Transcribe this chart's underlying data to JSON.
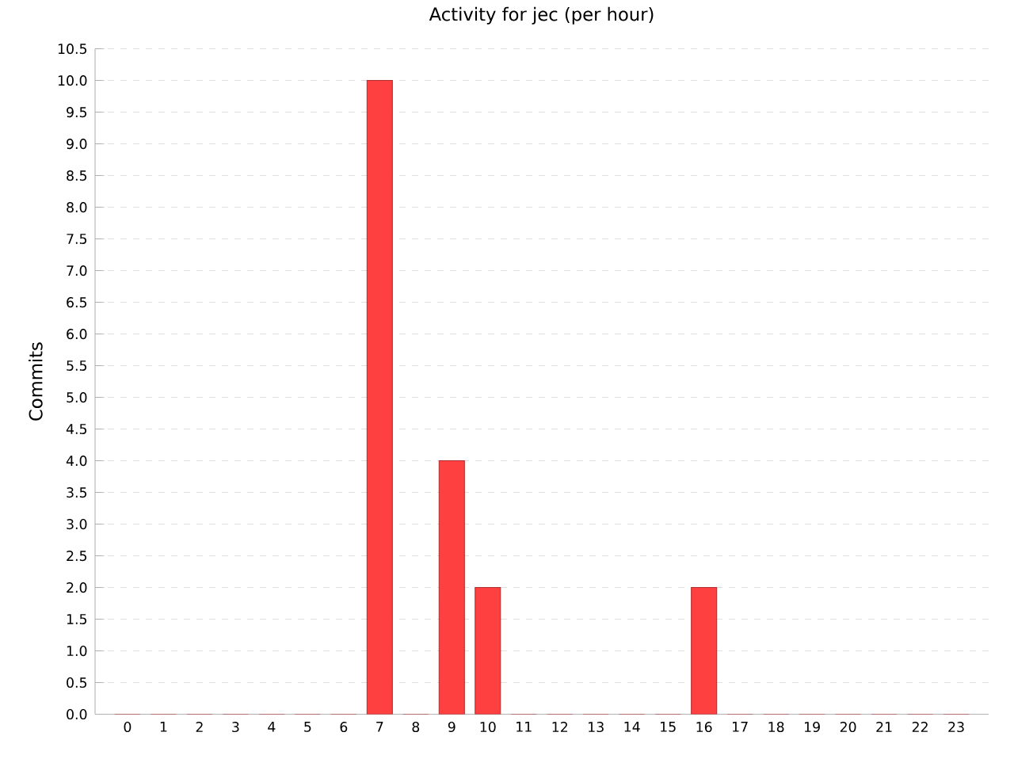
{
  "chart_data": {
    "type": "bar",
    "title": "Activity for jec (per hour)",
    "ylabel": "Commits",
    "categories": [
      "0",
      "1",
      "2",
      "3",
      "4",
      "5",
      "6",
      "7",
      "8",
      "9",
      "10",
      "11",
      "12",
      "13",
      "14",
      "15",
      "16",
      "17",
      "18",
      "19",
      "20",
      "21",
      "22",
      "23"
    ],
    "values": [
      0,
      0,
      0,
      0,
      0,
      0,
      0,
      10,
      0,
      4,
      2,
      0,
      0,
      0,
      0,
      0,
      2,
      0,
      0,
      0,
      0,
      0,
      0,
      0
    ],
    "color": "#ff4040",
    "ylim": [
      0,
      10.5
    ],
    "yticks": [
      {
        "value": 0,
        "label": "0.0"
      },
      {
        "value": 0.5,
        "label": "0.5"
      },
      {
        "value": 1,
        "label": "1.0"
      },
      {
        "value": 1.5,
        "label": "1.5"
      },
      {
        "value": 2,
        "label": "2.0"
      },
      {
        "value": 2.5,
        "label": "2.5"
      },
      {
        "value": 3,
        "label": "3.0"
      },
      {
        "value": 3.5,
        "label": "3.5"
      },
      {
        "value": 4,
        "label": "4.0"
      },
      {
        "value": 4.5,
        "label": "4.5"
      },
      {
        "value": 5,
        "label": "5.0"
      },
      {
        "value": 5.5,
        "label": "5.5"
      },
      {
        "value": 6,
        "label": "6.0"
      },
      {
        "value": 6.5,
        "label": "6.5"
      },
      {
        "value": 7,
        "label": "7.0"
      },
      {
        "value": 7.5,
        "label": "7.5"
      },
      {
        "value": 8,
        "label": "8.0"
      },
      {
        "value": 8.5,
        "label": "8.5"
      },
      {
        "value": 9,
        "label": "9.0"
      },
      {
        "value": 9.5,
        "label": "9.5"
      },
      {
        "value": 10,
        "label": "10.0"
      },
      {
        "value": 10.5,
        "label": "10.5"
      }
    ],
    "grid": "y"
  }
}
